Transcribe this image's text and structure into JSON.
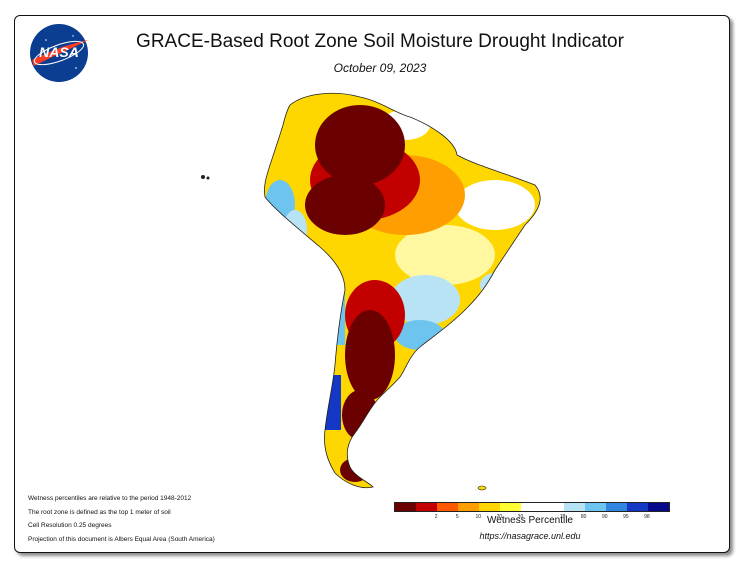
{
  "title": "GRACE-Based Root Zone Soil Moisture Drought Indicator",
  "date": "October 09, 2023",
  "logo_text": "NASA",
  "notes": [
    "Wetness percentiles are relative to the period 1948-2012",
    "The root zone is defined as the top 1 meter of soil",
    "Cell Resolution 0.25 degrees",
    "Projection of this document is Albers Equal Area (South America)"
  ],
  "legend": {
    "title": "Wetness Percentile",
    "colors": [
      "#6b0000",
      "#c30000",
      "#ff5a00",
      "#ff9e00",
      "#ffd700",
      "#ffff33",
      "#ffffff",
      "#ffffff",
      "#b8e3f5",
      "#6cc4ef",
      "#2f86e0",
      "#1437c6",
      "#08088a"
    ],
    "ticks": [
      "2",
      "5",
      "10",
      "20",
      "30",
      "70",
      "80",
      "90",
      "95",
      "98"
    ]
  },
  "url": "https://nasagrace.unl.edu",
  "map_colors": {
    "extreme": "#6b0000",
    "severe": "#c30000",
    "moderate": "#ff7a00",
    "abnormal": "#ffd700",
    "normal": "#ffffff",
    "wet": "#6cc4ef",
    "very_wet": "#1437c6"
  }
}
